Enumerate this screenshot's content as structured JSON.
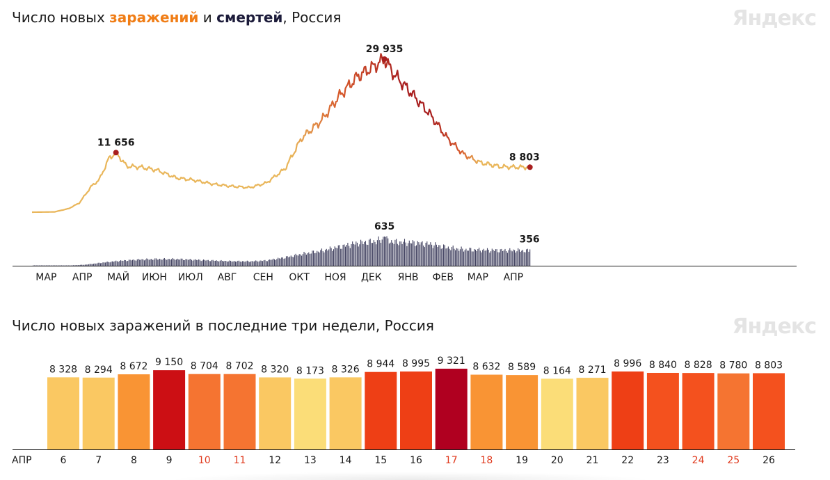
{
  "chart1": {
    "title_pre": "Число новых ",
    "title_inf": "заражений",
    "title_mid": " и ",
    "title_death": "смертей",
    "title_post": ", Россия",
    "logo": "Яндекс"
  },
  "chart2": {
    "title": "Число новых заражений в последние три недели, Россия",
    "logo": "Яндекс"
  },
  "chart_data": [
    {
      "type": "line",
      "title": "Число новых заражений и смертей, Россия",
      "x_ticks": [
        "МАР",
        "АПР",
        "МАЙ",
        "ИЮН",
        "ИЮЛ",
        "АВГ",
        "СЕН",
        "ОКТ",
        "НОЯ",
        "ДЕК",
        "ЯНВ",
        "ФЕВ",
        "МАР",
        "АПР"
      ],
      "series": [
        {
          "name": "заражений",
          "points": [
            [
              "2020-03-01",
              0
            ],
            [
              "2020-03-20",
              50
            ],
            [
              "2020-04-01",
              700
            ],
            [
              "2020-04-10",
              1800
            ],
            [
              "2020-04-20",
              5000
            ],
            [
              "2020-04-27",
              6400
            ],
            [
              "2020-05-05",
              10500
            ],
            [
              "2020-05-11",
              11656
            ],
            [
              "2020-05-20",
              9000
            ],
            [
              "2020-06-01",
              8800
            ],
            [
              "2020-06-15",
              8200
            ],
            [
              "2020-07-01",
              6700
            ],
            [
              "2020-07-15",
              6300
            ],
            [
              "2020-08-01",
              5500
            ],
            [
              "2020-08-15",
              5100
            ],
            [
              "2020-09-01",
              4800
            ],
            [
              "2020-09-15",
              5700
            ],
            [
              "2020-10-01",
              8500
            ],
            [
              "2020-10-15",
              14500
            ],
            [
              "2020-11-01",
              18000
            ],
            [
              "2020-11-15",
              22500
            ],
            [
              "2020-12-01",
              26500
            ],
            [
              "2020-12-15",
              28500
            ],
            [
              "2020-12-24",
              29935
            ],
            [
              "2021-01-01",
              27000
            ],
            [
              "2021-01-15",
              23500
            ],
            [
              "2021-02-01",
              19000
            ],
            [
              "2021-02-15",
              14500
            ],
            [
              "2021-03-01",
              11300
            ],
            [
              "2021-03-15",
              9700
            ],
            [
              "2021-04-01",
              8900
            ],
            [
              "2021-04-15",
              8800
            ],
            [
              "2021-04-26",
              8803
            ]
          ]
        },
        {
          "name": "смертей",
          "points": [
            [
              "2020-03-01",
              0
            ],
            [
              "2020-04-01",
              5
            ],
            [
              "2020-04-15",
              25
            ],
            [
              "2020-05-01",
              80
            ],
            [
              "2020-05-15",
              120
            ],
            [
              "2020-06-01",
              150
            ],
            [
              "2020-06-15",
              160
            ],
            [
              "2020-07-01",
              160
            ],
            [
              "2020-07-15",
              145
            ],
            [
              "2020-08-01",
              125
            ],
            [
              "2020-08-15",
              110
            ],
            [
              "2020-09-01",
              105
            ],
            [
              "2020-09-15",
              125
            ],
            [
              "2020-10-01",
              200
            ],
            [
              "2020-10-15",
              280
            ],
            [
              "2020-11-01",
              360
            ],
            [
              "2020-11-15",
              450
            ],
            [
              "2020-12-01",
              545
            ],
            [
              "2020-12-15",
              585
            ],
            [
              "2020-12-24",
              635
            ],
            [
              "2021-01-01",
              570
            ],
            [
              "2021-01-15",
              560
            ],
            [
              "2021-02-01",
              520
            ],
            [
              "2021-02-15",
              440
            ],
            [
              "2021-03-01",
              390
            ],
            [
              "2021-03-15",
              380
            ],
            [
              "2021-04-01",
              370
            ],
            [
              "2021-04-15",
              370
            ],
            [
              "2021-04-26",
              356
            ]
          ]
        }
      ],
      "annotations": [
        {
          "date": "2020-05-11",
          "series": "заражений",
          "label": "11 656"
        },
        {
          "date": "2020-12-24",
          "series": "заражений",
          "label": "29 935"
        },
        {
          "date": "2021-04-26",
          "series": "заражений",
          "label": "8 803"
        },
        {
          "date": "2020-12-24",
          "series": "смертей",
          "label": "635"
        },
        {
          "date": "2021-04-26",
          "series": "смертей",
          "label": "356"
        }
      ],
      "colors": {
        "low": "#e9b65a",
        "mid": "#d6582b",
        "high": "#a81e1e",
        "deaths": "#3f3f5e"
      }
    },
    {
      "type": "bar",
      "title": "Число новых заражений в последние три недели, Россия",
      "month_label": "АПР",
      "categories": [
        "6",
        "7",
        "8",
        "9",
        "10",
        "11",
        "12",
        "13",
        "14",
        "15",
        "16",
        "17",
        "18",
        "19",
        "20",
        "21",
        "22",
        "23",
        "24",
        "25",
        "26"
      ],
      "values": [
        8328,
        8294,
        8672,
        9150,
        8704,
        8702,
        8320,
        8173,
        8326,
        8944,
        8995,
        9321,
        8632,
        8589,
        8164,
        8271,
        8996,
        8840,
        8828,
        8780,
        8803
      ],
      "value_labels": [
        "8 328",
        "8 294",
        "8 672",
        "9 150",
        "8 704",
        "8 702",
        "8 320",
        "8 173",
        "8 326",
        "8 944",
        "8 995",
        "9 321",
        "8 632",
        "8 589",
        "8 164",
        "8 271",
        "8 996",
        "8 840",
        "8 828",
        "8 780",
        "8 803"
      ],
      "weekend_categories": [
        "10",
        "11",
        "17",
        "18",
        "24",
        "25"
      ],
      "bar_colors": [
        "#fac862",
        "#fac862",
        "#f99434",
        "#cc0f14",
        "#f57431",
        "#f57431",
        "#fac862",
        "#fbdd78",
        "#fac862",
        "#ee3f15",
        "#ee3f15",
        "#b00020",
        "#f99434",
        "#f99434",
        "#fbdd78",
        "#fac862",
        "#ee3f15",
        "#f4511e",
        "#f4511e",
        "#f57431",
        "#f4511e"
      ],
      "tick_red_color": "#e03a1e"
    }
  ]
}
